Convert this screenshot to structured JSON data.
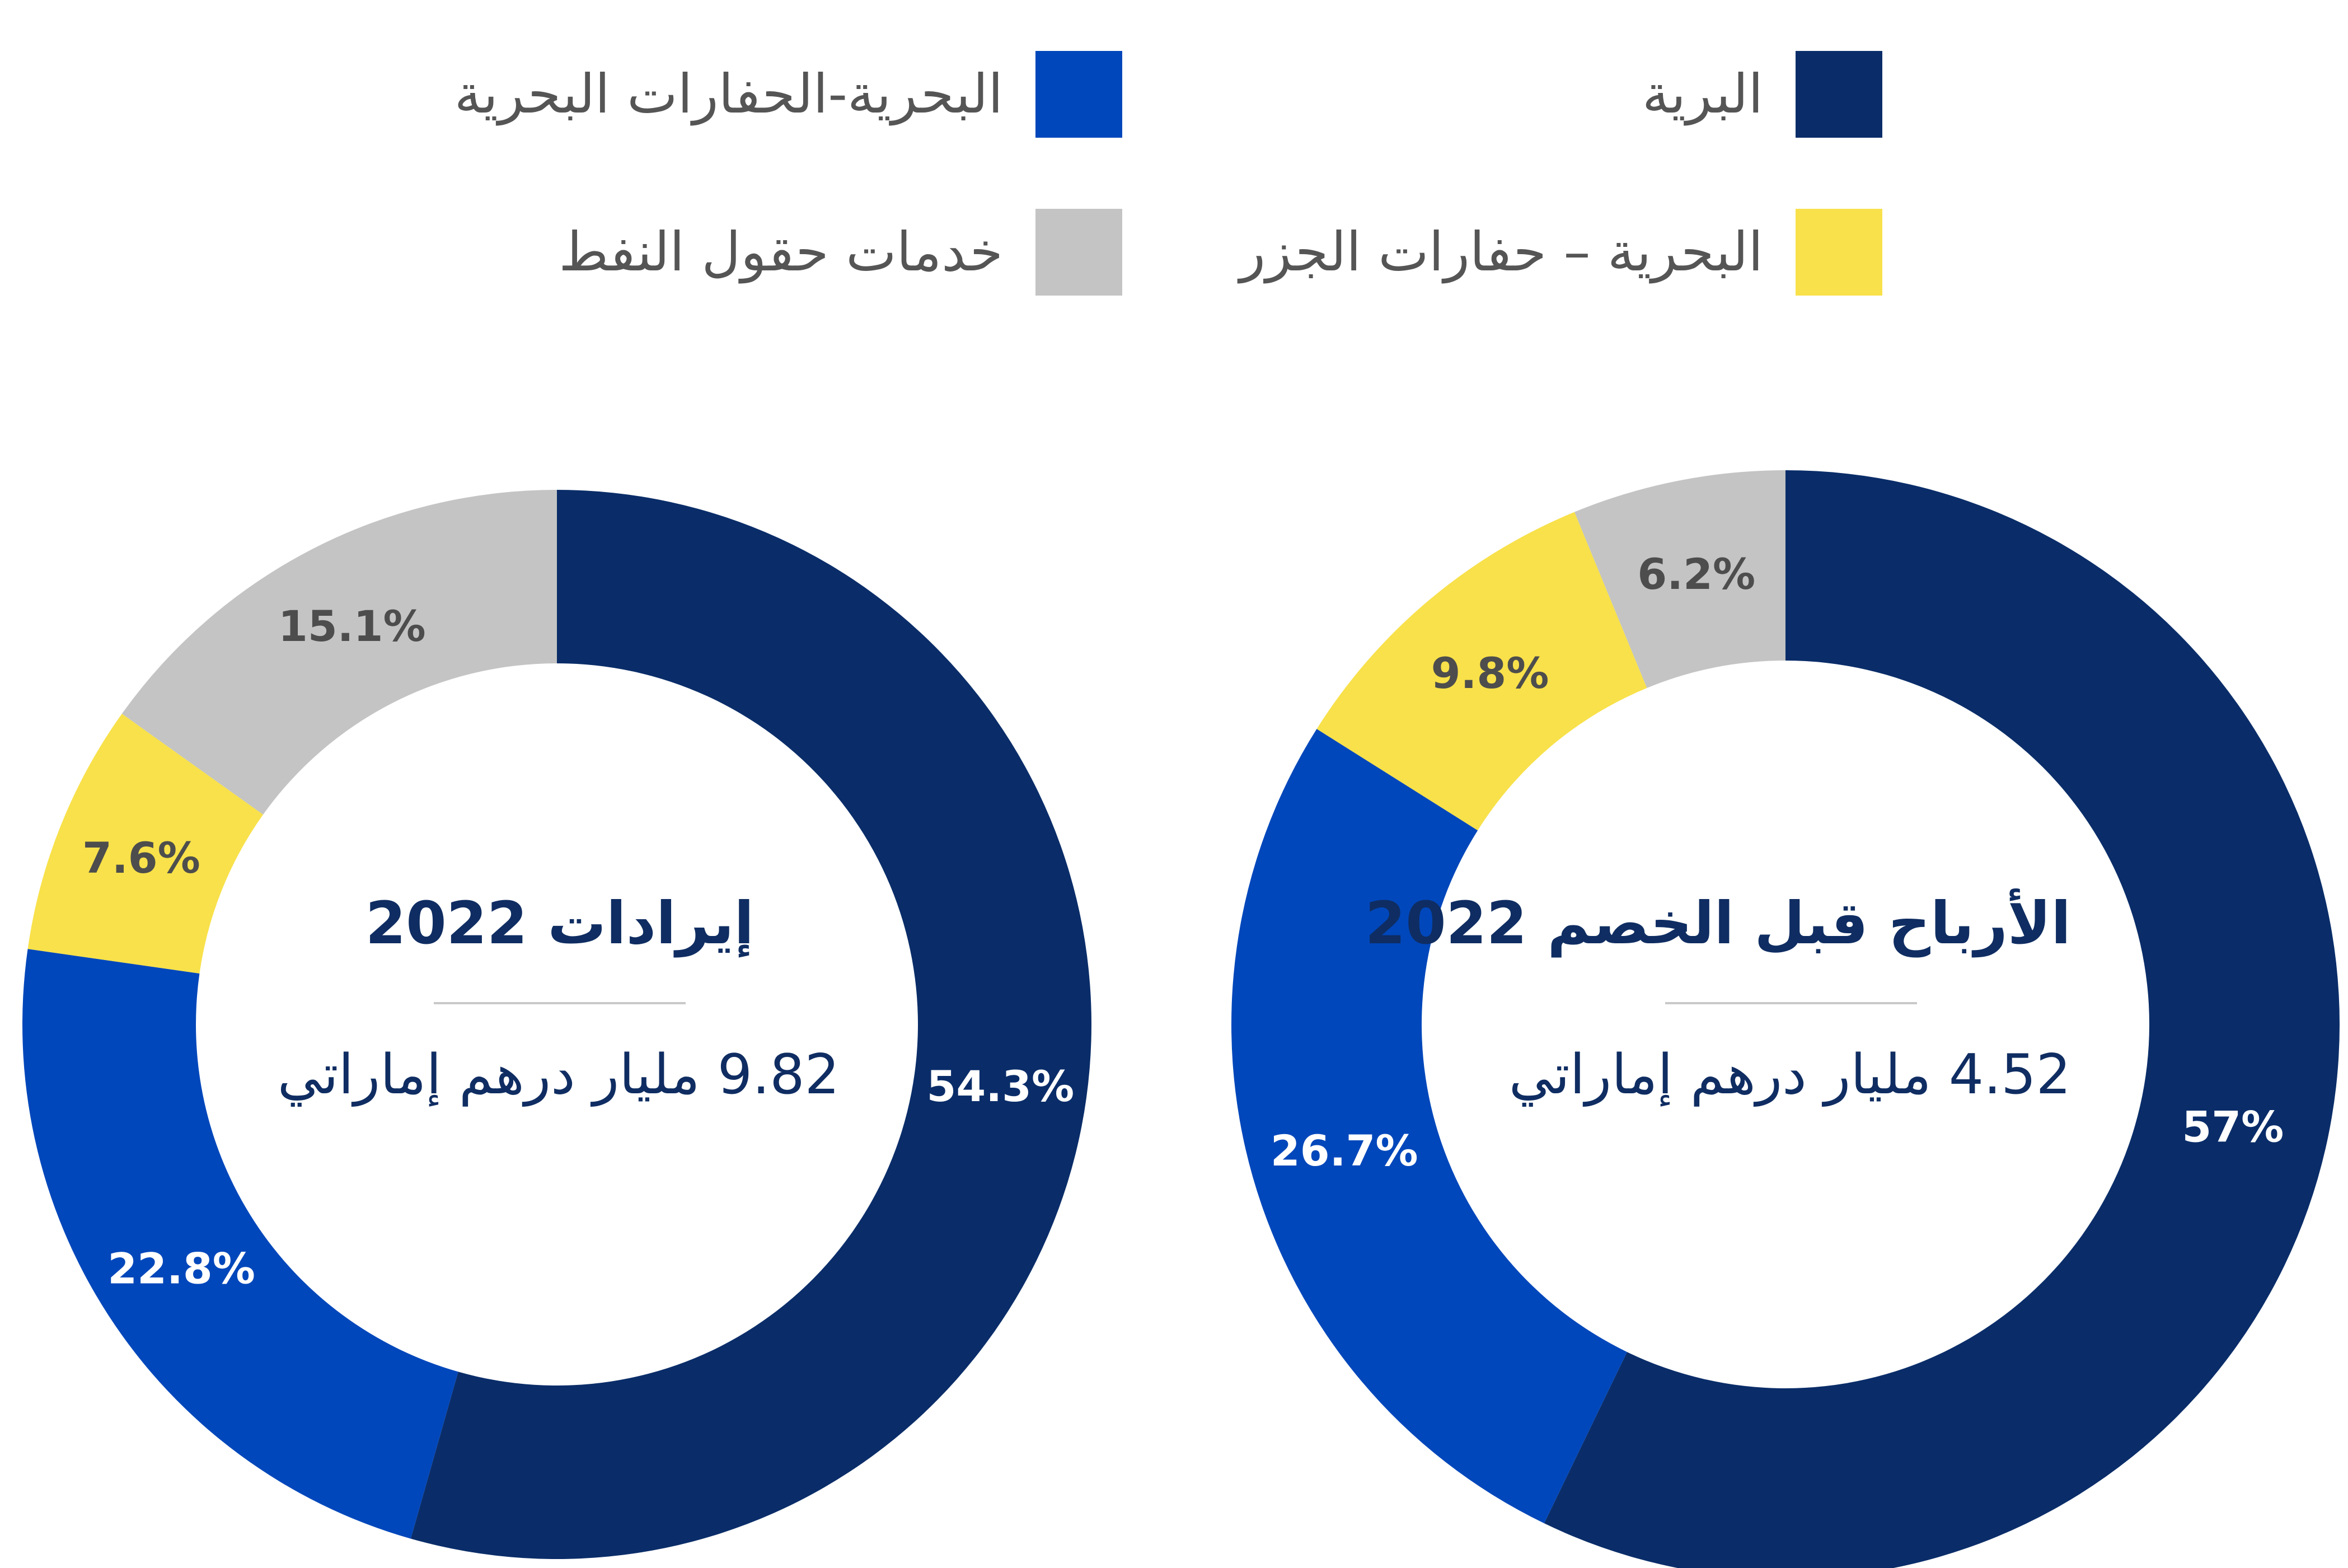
{
  "legend": {
    "items": [
      {
        "label": "البرية",
        "color": "#0a2d69"
      },
      {
        "label": "البحرية-الحفارات البحرية",
        "color": "#0047bb"
      },
      {
        "label": "البحرية – حفارات الجزر",
        "color": "#f8e14a"
      },
      {
        "label": "خدمات حقول النفط",
        "color": "#c4c4c4"
      }
    ]
  },
  "chart_data": [
    {
      "type": "pie",
      "title": "إيرادات 2022",
      "subtitle": "9.82 مليار درهم إماراتي",
      "categories": [
        "البرية",
        "البحرية-الحفارات البحرية",
        "البحرية – حفارات الجزر",
        "خدمات حقول النفط"
      ],
      "values": [
        54.3,
        22.8,
        7.6,
        15.1
      ],
      "labels": [
        "54.3%",
        "22.8%",
        "7.6%",
        "15.1%"
      ],
      "colors": [
        "#0a2d69",
        "#0047bb",
        "#f8e14a",
        "#c4c4c4"
      ],
      "label_colors": [
        "#ffffff",
        "#ffffff",
        "#4d4d4d",
        "#4d4d4d"
      ],
      "donut": true
    },
    {
      "type": "pie",
      "title": "الأرباح قبل الخصم 2022",
      "subtitle": "4.52 مليار درهم إماراتي",
      "categories": [
        "البرية",
        "البحرية-الحفارات البحرية",
        "البحرية – حفارات الجزر",
        "خدمات حقول النفط"
      ],
      "values": [
        57,
        26.7,
        9.8,
        6.2
      ],
      "labels": [
        "57%",
        "26.7%",
        "9.8%",
        "6.2%"
      ],
      "colors": [
        "#0a2d69",
        "#0047bb",
        "#f8e14a",
        "#c4c4c4"
      ],
      "label_colors": [
        "#ffffff",
        "#ffffff",
        "#4d4d4d",
        "#4d4d4d"
      ],
      "donut": true
    }
  ]
}
